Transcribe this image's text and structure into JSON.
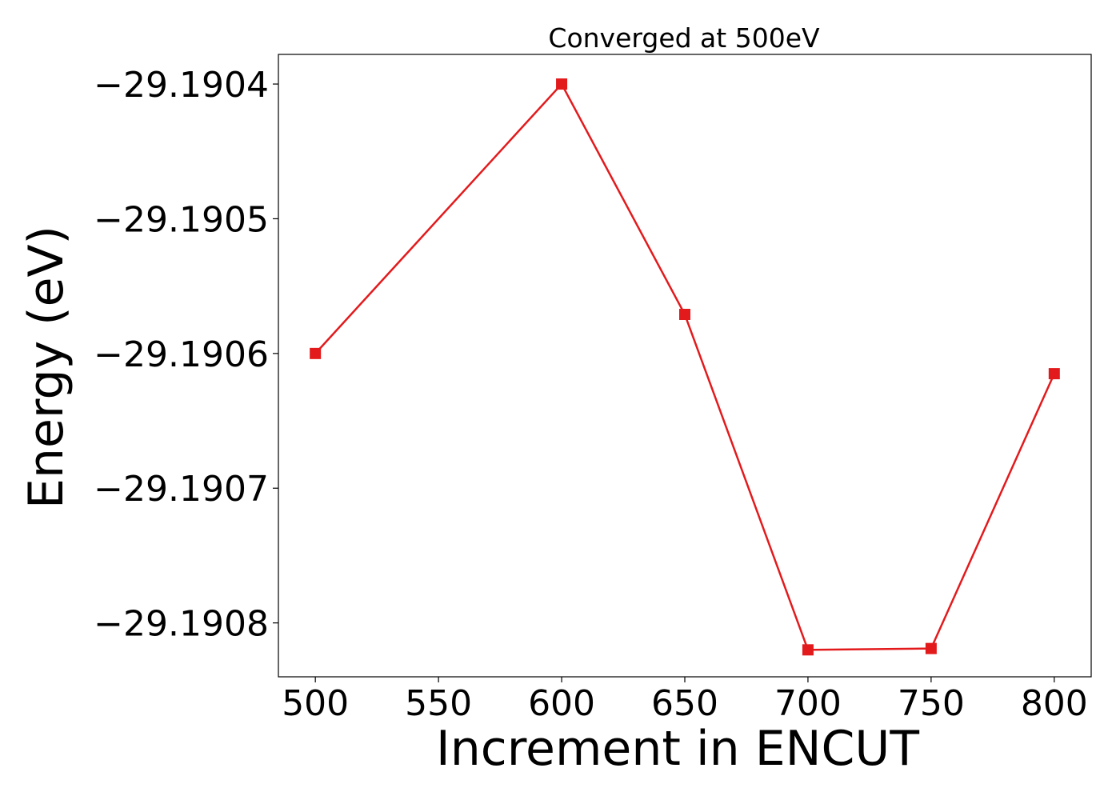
{
  "chart_data": {
    "type": "line",
    "title": "Converged at 500eV",
    "xlabel": "Increment in ENCUT",
    "ylabel": "Energy (eV)",
    "x": [
      500,
      600,
      650,
      700,
      750,
      800
    ],
    "series": [
      {
        "values": [
          -29.1906,
          -29.1904,
          -29.190571,
          -29.19082,
          -29.190819,
          -29.190615
        ],
        "color": "#e31a1c",
        "marker": "square"
      }
    ],
    "xlim": [
      485,
      815
    ],
    "ylim": [
      -29.19084,
      -29.190378
    ],
    "xticks": [
      500,
      550,
      600,
      650,
      700,
      750,
      800
    ],
    "yticks": [
      -29.1904,
      -29.1905,
      -29.1906,
      -29.1907,
      -29.1908
    ],
    "xtick_labels": [
      "500",
      "550",
      "600",
      "650",
      "700",
      "750",
      "800"
    ],
    "ytick_labels": [
      "−29.1904",
      "−29.1905",
      "−29.1906",
      "−29.1907",
      "−29.1908"
    ],
    "grid": false,
    "legend": "none"
  }
}
